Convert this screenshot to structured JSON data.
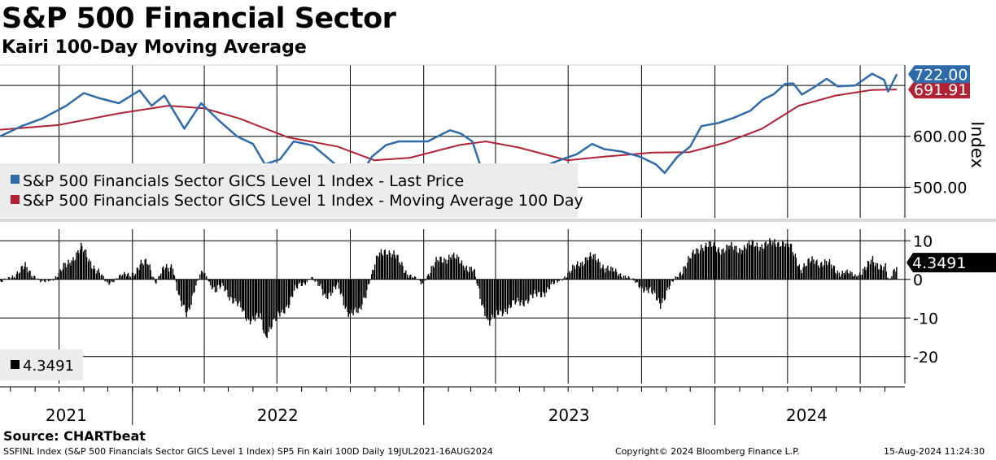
{
  "title": "S&P 500 Financial Sector",
  "subtitle": "Kairi 100-Day Moving Average",
  "source": "Source: CHARTbeat",
  "footer": {
    "left": "SSFINL Index (S&P 500 Financials Sector GICS Level 1 Index) SP5 Fin Kairi 100D  Daily 19JUL2021-16AUG2024",
    "center": "Copyright© 2024 Bloomberg Finance L.P.",
    "right": "15-Aug-2024 11:24:30"
  },
  "colors": {
    "price": "#2e6bab",
    "ma": "#b22234",
    "kairi": "#000000",
    "legend_bg": "#ececec",
    "divider": "#d9d9d9"
  },
  "chart_data": [
    {
      "type": "line",
      "ylabel": "Index",
      "ylim": [
        440,
        740
      ],
      "yticks": [
        500,
        600
      ],
      "ytick_labels": [
        "500.00",
        "600.00"
      ],
      "legend": [
        "S&P 500 Financials Sector GICS Level 1 Index - Last Price",
        "S&P 500 Financials Sector GICS Level 1 Index - Moving Average 100 Day"
      ],
      "legend_position": "bottom-left",
      "last_value_labels": {
        "price": "722.00",
        "ma": "691.91"
      },
      "series": [
        {
          "key": "price",
          "points": [
            [
              "2021-07-19",
              600
            ],
            [
              "2021-08-15",
              620
            ],
            [
              "2021-09-10",
              635
            ],
            [
              "2021-10-10",
              660
            ],
            [
              "2021-11-01",
              685
            ],
            [
              "2021-11-20",
              675
            ],
            [
              "2021-12-15",
              665
            ],
            [
              "2022-01-10",
              690
            ],
            [
              "2022-01-25",
              660
            ],
            [
              "2022-02-10",
              680
            ],
            [
              "2022-03-07",
              615
            ],
            [
              "2022-03-28",
              665
            ],
            [
              "2022-04-20",
              630
            ],
            [
              "2022-05-12",
              600
            ],
            [
              "2022-06-01",
              585
            ],
            [
              "2022-06-16",
              545
            ],
            [
              "2022-07-05",
              555
            ],
            [
              "2022-07-22",
              590
            ],
            [
              "2022-08-15",
              582
            ],
            [
              "2022-09-01",
              560
            ],
            [
              "2022-09-27",
              525
            ],
            [
              "2022-10-13",
              520
            ],
            [
              "2022-10-28",
              560
            ],
            [
              "2022-11-15",
              583
            ],
            [
              "2022-12-01",
              590
            ],
            [
              "2023-01-06",
              590
            ],
            [
              "2023-01-25",
              605
            ],
            [
              "2023-02-03",
              612
            ],
            [
              "2023-02-17",
              605
            ],
            [
              "2023-03-03",
              590
            ],
            [
              "2023-03-13",
              543
            ],
            [
              "2023-03-24",
              523
            ],
            [
              "2023-04-11",
              540
            ],
            [
              "2023-05-04",
              525
            ],
            [
              "2023-05-30",
              540
            ],
            [
              "2023-06-20",
              553
            ],
            [
              "2023-07-12",
              565
            ],
            [
              "2023-07-31",
              585
            ],
            [
              "2023-08-15",
              575
            ],
            [
              "2023-09-06",
              570
            ],
            [
              "2023-09-29",
              560
            ],
            [
              "2023-10-19",
              545
            ],
            [
              "2023-10-30",
              528
            ],
            [
              "2023-11-15",
              560
            ],
            [
              "2023-12-01",
              580
            ],
            [
              "2023-12-15",
              620
            ],
            [
              "2024-01-05",
              626
            ],
            [
              "2024-01-24",
              636
            ],
            [
              "2024-02-14",
              650
            ],
            [
              "2024-03-01",
              672
            ],
            [
              "2024-03-15",
              683
            ],
            [
              "2024-03-29",
              703
            ],
            [
              "2024-04-08",
              704
            ],
            [
              "2024-04-19",
              682
            ],
            [
              "2024-05-03",
              695
            ],
            [
              "2024-05-20",
              713
            ],
            [
              "2024-06-03",
              698
            ],
            [
              "2024-06-25",
              700
            ],
            [
              "2024-07-16",
              723
            ],
            [
              "2024-07-31",
              711
            ],
            [
              "2024-08-05",
              688
            ],
            [
              "2024-08-16",
              722
            ]
          ]
        },
        {
          "key": "ma",
          "points": [
            [
              "2021-07-19",
              613
            ],
            [
              "2021-09-30",
              622
            ],
            [
              "2021-12-15",
              645
            ],
            [
              "2022-02-15",
              660
            ],
            [
              "2022-04-01",
              655
            ],
            [
              "2022-05-15",
              635
            ],
            [
              "2022-07-15",
              598
            ],
            [
              "2022-09-15",
              580
            ],
            [
              "2022-10-31",
              553
            ],
            [
              "2022-12-15",
              558
            ],
            [
              "2023-02-15",
              583
            ],
            [
              "2023-03-20",
              590
            ],
            [
              "2023-04-30",
              578
            ],
            [
              "2023-06-30",
              553
            ],
            [
              "2023-08-15",
              560
            ],
            [
              "2023-10-15",
              568
            ],
            [
              "2023-11-30",
              569
            ],
            [
              "2024-01-15",
              588
            ],
            [
              "2024-02-29",
              615
            ],
            [
              "2024-04-15",
              660
            ],
            [
              "2024-05-31",
              680
            ],
            [
              "2024-07-15",
              691
            ],
            [
              "2024-08-16",
              692
            ]
          ]
        }
      ]
    },
    {
      "type": "bar",
      "ylim": [
        -27,
        13
      ],
      "yticks": [
        10,
        0,
        -10,
        -20
      ],
      "ytick_labels": [
        "10",
        "0",
        "-10",
        "-20"
      ],
      "legend": [
        "4.3491"
      ],
      "legend_position": "bottom-left",
      "last_value_label": "4.3491",
      "x_labels": [
        "2021",
        "2022",
        "2023",
        "2024"
      ],
      "values_by_date": [
        [
          "2021-07-19",
          -1
        ],
        [
          "2021-08-20",
          3
        ],
        [
          "2021-09-10",
          -1
        ],
        [
          "2021-09-30",
          1
        ],
        [
          "2021-10-15",
          5
        ],
        [
          "2021-10-29",
          8
        ],
        [
          "2021-11-15",
          3
        ],
        [
          "2021-11-30",
          -1
        ],
        [
          "2021-12-20",
          1
        ],
        [
          "2022-01-05",
          2
        ],
        [
          "2022-01-20",
          5
        ],
        [
          "2022-01-30",
          -1
        ],
        [
          "2022-02-10",
          3
        ],
        [
          "2022-02-20",
          4
        ],
        [
          "2022-03-01",
          -6
        ],
        [
          "2022-03-10",
          -9
        ],
        [
          "2022-03-20",
          -2
        ],
        [
          "2022-03-30",
          2
        ],
        [
          "2022-04-15",
          -3
        ],
        [
          "2022-04-25",
          -2
        ],
        [
          "2022-05-10",
          -6
        ],
        [
          "2022-05-25",
          -10
        ],
        [
          "2022-06-10",
          -10
        ],
        [
          "2022-06-16",
          -15
        ],
        [
          "2022-06-25",
          -11
        ],
        [
          "2022-07-08",
          -9
        ],
        [
          "2022-07-22",
          -3
        ],
        [
          "2022-08-05",
          -1
        ],
        [
          "2022-08-12",
          1
        ],
        [
          "2022-08-30",
          -4
        ],
        [
          "2022-09-15",
          -2
        ],
        [
          "2022-09-27",
          -8
        ],
        [
          "2022-10-12",
          -9
        ],
        [
          "2022-10-22",
          -2
        ],
        [
          "2022-11-05",
          6
        ],
        [
          "2022-11-15",
          8
        ],
        [
          "2022-11-25",
          6
        ],
        [
          "2022-12-15",
          1
        ],
        [
          "2022-12-30",
          -1
        ],
        [
          "2023-01-05",
          1
        ],
        [
          "2023-01-20",
          5
        ],
        [
          "2023-02-03",
          6
        ],
        [
          "2023-02-20",
          4
        ],
        [
          "2023-03-05",
          2
        ],
        [
          "2023-03-13",
          -5
        ],
        [
          "2023-03-24",
          -11
        ],
        [
          "2023-04-10",
          -8
        ],
        [
          "2023-04-30",
          -6
        ],
        [
          "2023-05-25",
          -4
        ],
        [
          "2023-06-15",
          -1
        ],
        [
          "2023-07-05",
          2
        ],
        [
          "2023-07-25",
          6
        ],
        [
          "2023-08-05",
          5
        ],
        [
          "2023-08-25",
          2
        ],
        [
          "2023-09-10",
          1
        ],
        [
          "2023-09-25",
          -1
        ],
        [
          "2023-10-10",
          -3
        ],
        [
          "2023-10-25",
          -6
        ],
        [
          "2023-11-05",
          -2
        ],
        [
          "2023-11-15",
          1
        ],
        [
          "2023-11-30",
          5
        ],
        [
          "2023-12-15",
          9
        ],
        [
          "2024-01-05",
          8
        ],
        [
          "2024-01-30",
          8
        ],
        [
          "2024-02-20",
          9
        ],
        [
          "2024-03-10",
          9
        ],
        [
          "2024-03-25",
          10
        ],
        [
          "2024-04-05",
          8
        ],
        [
          "2024-04-18",
          3
        ],
        [
          "2024-05-05",
          5
        ],
        [
          "2024-05-20",
          4
        ],
        [
          "2024-06-05",
          2
        ],
        [
          "2024-06-25",
          1
        ],
        [
          "2024-07-10",
          3
        ],
        [
          "2024-07-16",
          5
        ],
        [
          "2024-08-01",
          3
        ],
        [
          "2024-08-06",
          -1
        ],
        [
          "2024-08-16",
          4.3491
        ]
      ]
    }
  ]
}
